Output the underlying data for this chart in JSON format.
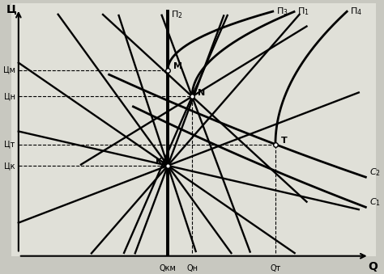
{
  "bg_color": "#e0e0d8",
  "fig_bg": "#c8c8c0",
  "Q_KM": 0.45,
  "Q_N": 0.52,
  "Q_T": 0.76,
  "P_M": 0.7,
  "P_N": 0.6,
  "P_T": 0.42,
  "P_K": 0.34,
  "ylabel": "Ц",
  "xlabel": "Q",
  "pi2_label": "Π2",
  "pi3_label": "Π3",
  "pi1_label": "Π1",
  "pi4_label": "Π4",
  "c1_label": "C₁",
  "c2_label": "C₂",
  "label_PM": "Цм",
  "label_PN": "Цн",
  "label_PT": "Цт",
  "label_PK": "Цк",
  "label_QKM": "Qкм",
  "label_QN": "Qн",
  "label_QT": "Qт"
}
